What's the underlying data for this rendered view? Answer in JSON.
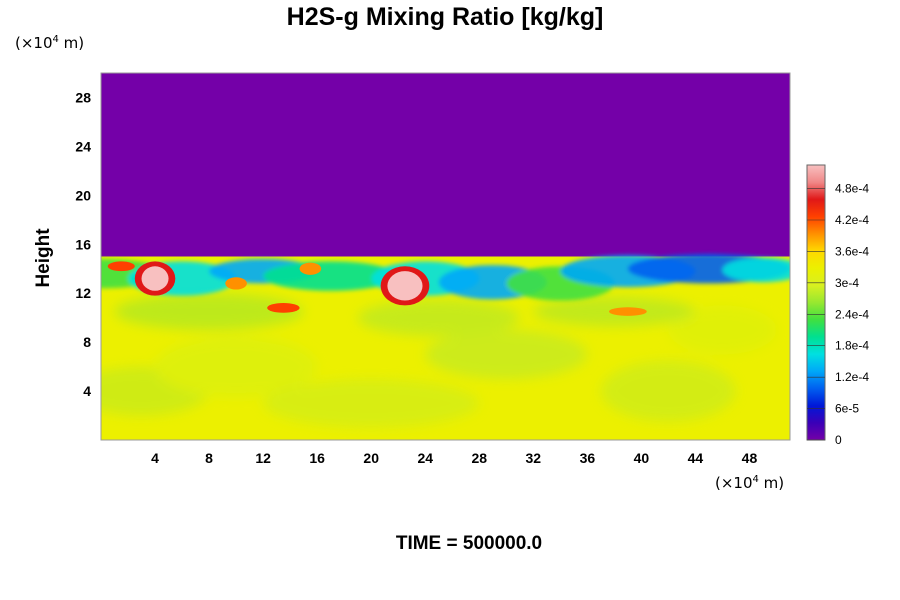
{
  "chart_data": {
    "type": "heatmap",
    "title": "H2S-g Mixing Ratio [kg/kg]",
    "ylabel": "Height",
    "xlabel": "",
    "x_unit": {
      "base": "(×10",
      "exp": "4",
      "suffix": " m)"
    },
    "y_unit": {
      "base": "(×10",
      "exp": "4",
      "suffix": " m)"
    },
    "xlim": [
      0,
      51
    ],
    "ylim": [
      0,
      30
    ],
    "x_ticks": [
      "4",
      "8",
      "12",
      "16",
      "20",
      "24",
      "28",
      "32",
      "36",
      "40",
      "44",
      "48"
    ],
    "y_ticks": [
      "4",
      "8",
      "12",
      "16",
      "20",
      "24",
      "28"
    ],
    "colorbar": {
      "labels": [
        "0",
        "6e-5",
        "1.2e-4",
        "1.8e-4",
        "2.4e-4",
        "3e-4",
        "3.6e-4",
        "4.2e-4",
        "4.8e-4"
      ],
      "min": 0,
      "max": 0.000525,
      "colors": [
        "#7400a8",
        "#3a00b8",
        "#0018d8",
        "#0060f0",
        "#00a8f8",
        "#00e0e0",
        "#00e090",
        "#40e040",
        "#98e830",
        "#d8f020",
        "#ecf000",
        "#ffd800",
        "#ff9000",
        "#ff4000",
        "#e01818",
        "#f08888",
        "#f8c0c0"
      ]
    },
    "field": {
      "description": "vertical cross-section, value in kg/kg",
      "lower_layer_value": 0.00033,
      "upper_layer_value": 0,
      "interface_height": 15
    },
    "footer": "TIME = 500000.0"
  }
}
